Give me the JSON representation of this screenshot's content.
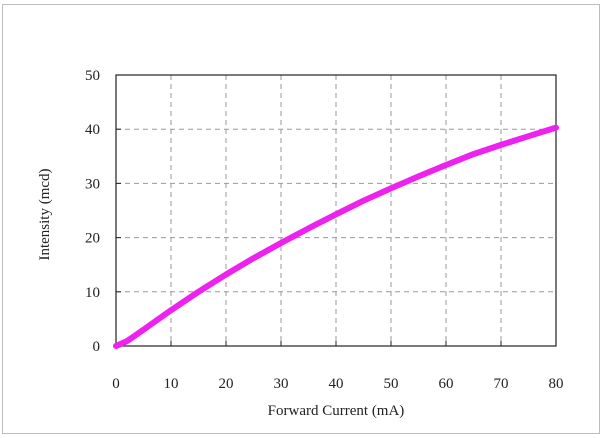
{
  "chart_data": {
    "type": "line",
    "title": "",
    "xlabel": "Forward Current (mA)",
    "ylabel": "Intensity (mcd)",
    "xlim": [
      0,
      80
    ],
    "ylim": [
      0,
      50
    ],
    "xticks": [
      0,
      10,
      20,
      30,
      40,
      50,
      60,
      70,
      80
    ],
    "yticks": [
      0,
      10,
      20,
      30,
      40,
      50
    ],
    "grid": true,
    "series": [
      {
        "name": "",
        "color": "#ee22ee",
        "x": [
          0,
          2,
          5,
          10,
          15,
          20,
          25,
          30,
          35,
          40,
          45,
          50,
          55,
          60,
          65,
          70,
          75,
          80
        ],
        "y": [
          0,
          0.9,
          3.0,
          6.6,
          10.0,
          13.2,
          16.2,
          19.0,
          21.7,
          24.3,
          26.8,
          29.1,
          31.3,
          33.4,
          35.4,
          37.1,
          38.7,
          40.3
        ]
      }
    ]
  }
}
